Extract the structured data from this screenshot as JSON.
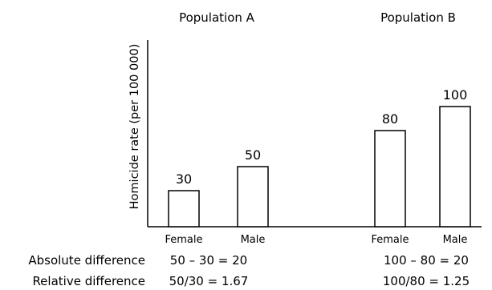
{
  "chart_data": {
    "type": "bar",
    "ylabel": "Homicide rate (per 100 000)",
    "ylim": [
      0,
      110
    ],
    "grid": false,
    "groups": [
      {
        "name": "Population A",
        "categories": [
          "Female",
          "Male"
        ],
        "values": [
          30,
          50
        ],
        "value_labels": [
          "30",
          "50"
        ],
        "absolute_difference": "50 – 30 = 20",
        "relative_difference": "50/30 = 1.67"
      },
      {
        "name": "Population B",
        "categories": [
          "Female",
          "Male"
        ],
        "values": [
          80,
          100
        ],
        "value_labels": [
          "80",
          "100"
        ],
        "absolute_difference": "100 – 80 = 20",
        "relative_difference": "100/80 = 1.25"
      }
    ],
    "row_labels": {
      "absolute": "Absolute difference",
      "relative": "Relative difference"
    },
    "colors": {
      "bar_fill": "#ffffff",
      "bar_stroke": "#000000",
      "axis": "#000000"
    }
  }
}
